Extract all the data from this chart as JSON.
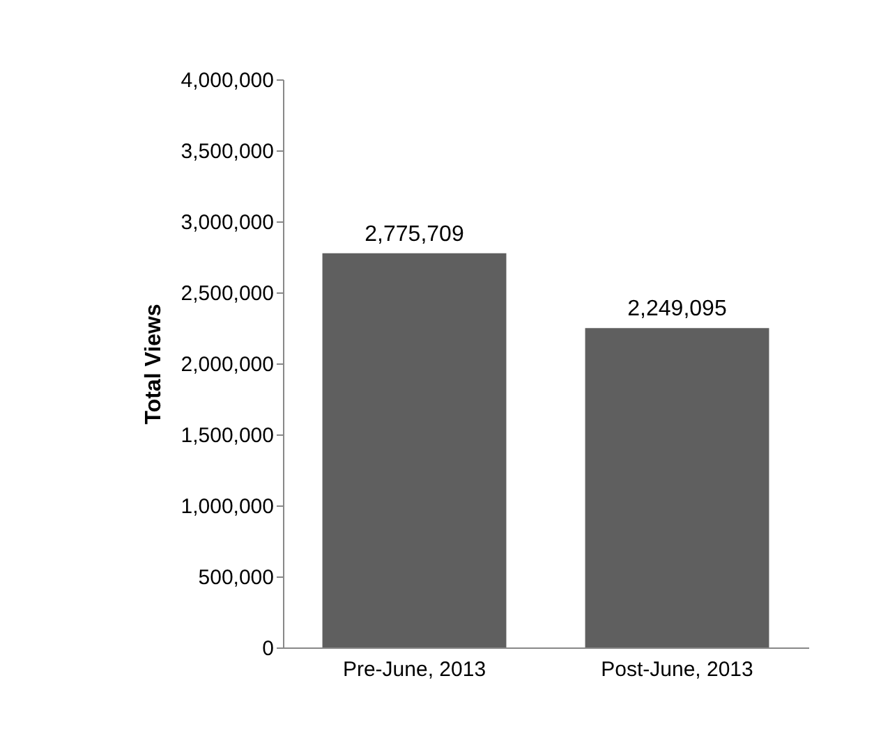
{
  "chart_data": {
    "type": "bar",
    "ylabel": "Total Views",
    "categories": [
      "Pre-June, 2013",
      "Post-June, 2013"
    ],
    "values": [
      2775709,
      2249095
    ],
    "value_labels": [
      "2,775,709",
      "2,249,095"
    ],
    "color": "#5f5f5f",
    "ylim": [
      0,
      4000000
    ],
    "yticks": [
      {
        "value": 0,
        "label": "0"
      },
      {
        "value": 500000,
        "label": "500,000"
      },
      {
        "value": 1000000,
        "label": "1,000,000"
      },
      {
        "value": 1500000,
        "label": "1,500,000"
      },
      {
        "value": 2000000,
        "label": "2,000,000"
      },
      {
        "value": 2500000,
        "label": "2,500,000"
      },
      {
        "value": 3000000,
        "label": "3,000,000"
      },
      {
        "value": 3500000,
        "label": "3,500,000"
      },
      {
        "value": 4000000,
        "label": "4,000,000"
      }
    ],
    "grid": false
  }
}
